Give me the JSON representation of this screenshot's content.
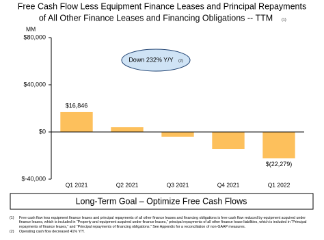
{
  "chart_data": {
    "type": "bar",
    "title_lines": [
      "Free Cash Flow Less Equipment Finance Leases and Principal Repayments",
      "of All Other Finance Leases and Financing Obligations -- TTM"
    ],
    "title_note": "(1)",
    "y_label": "MM",
    "categories": [
      "Q1 2021",
      "Q2 2021",
      "Q3 2021",
      "Q4 2021",
      "Q1 2022"
    ],
    "values": [
      16846,
      4000,
      -4000,
      -14500,
      -22279
    ],
    "value_labels": [
      "$16,846",
      null,
      null,
      null,
      "$(22,279)"
    ],
    "color": "#fdc05c",
    "ylim": [
      -40000,
      80000
    ],
    "yticks": [
      {
        "value": 80000,
        "label": "$80,000"
      },
      {
        "value": 40000,
        "label": "$40,000"
      },
      {
        "value": 0,
        "label": "$0"
      },
      {
        "value": -40000,
        "label": "$-40,000"
      }
    ],
    "grid": false,
    "annotation": {
      "text": "Down 232% Y/Y",
      "note": "(2)"
    },
    "banner": "Long-Term Goal – Optimize Free Cash Flows",
    "footnotes": [
      {
        "marker": "(1)",
        "text": "Free cash flow less equipment finance leases and principal repayments of all other finance leases and financing obligations is free cash flow reduced by equipment acquired under finance leases, which is included in “Property and equipment acquired under finance leases,” principal repayments of all other finance lease liabilities, which is included in “Principal repayments of finance leases,” and “Principal repayments of financing obligations.” See Appendix for a reconciliation of non-GAAP measures."
      },
      {
        "marker": "(2)",
        "text": "Operating cash flow decreased 41% Y/Y."
      }
    ]
  }
}
